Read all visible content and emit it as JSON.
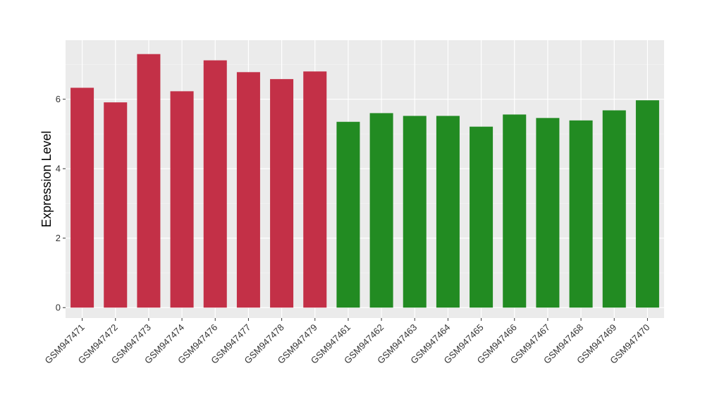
{
  "chart_data": {
    "type": "bar",
    "title": "",
    "xlabel": "",
    "ylabel": "Expression Level",
    "ylim": [
      -0.3,
      7.7
    ],
    "yticks": [
      0,
      2,
      4,
      6
    ],
    "grid": true,
    "legend": "none",
    "background": "#EBEBEB",
    "categories": [
      "GSM947471",
      "GSM947472",
      "GSM947473",
      "GSM947474",
      "GSM947476",
      "GSM947477",
      "GSM947478",
      "GSM947479",
      "GSM947461",
      "GSM947462",
      "GSM947463",
      "GSM947464",
      "GSM947465",
      "GSM947466",
      "GSM947467",
      "GSM947468",
      "GSM947469",
      "GSM947470"
    ],
    "values": [
      6.33,
      5.91,
      7.3,
      6.23,
      7.12,
      6.78,
      6.58,
      6.8,
      5.35,
      5.6,
      5.52,
      5.52,
      5.21,
      5.56,
      5.46,
      5.39,
      5.68,
      5.97
    ],
    "colors": [
      "#C33047",
      "#C33047",
      "#C33047",
      "#C33047",
      "#C33047",
      "#C33047",
      "#C33047",
      "#C33047",
      "#228B22",
      "#228B22",
      "#228B22",
      "#228B22",
      "#228B22",
      "#228B22",
      "#228B22",
      "#228B22",
      "#228B22",
      "#228B22"
    ]
  }
}
